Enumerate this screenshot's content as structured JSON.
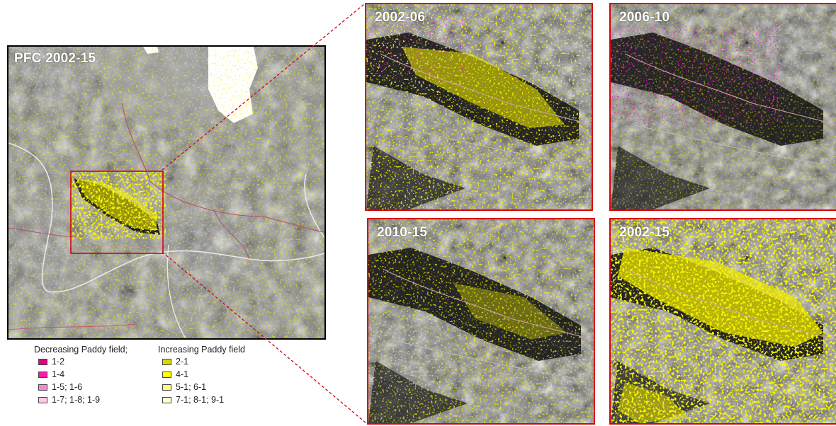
{
  "main_map": {
    "label": "PFC 2002-15"
  },
  "insets": [
    {
      "label": "2002-06"
    },
    {
      "label": "2006-10"
    },
    {
      "label": "2010-15"
    },
    {
      "label": "2002-15"
    }
  ],
  "legend": {
    "decreasing_title": "Decreasing Paddy field;",
    "increasing_title": "Increasing Paddy field",
    "decreasing": [
      {
        "label": "1-2",
        "color": "#e6007e"
      },
      {
        "label": "1-4",
        "color": "#ff1aa8"
      },
      {
        "label": "1-5; 1-6",
        "color": "#f08ad0"
      },
      {
        "label": "1-7; 1-8; 1-9",
        "color": "#ffc8e6"
      }
    ],
    "increasing": [
      {
        "label": "2-1",
        "color": "#d8d800"
      },
      {
        "label": "4-1",
        "color": "#ffff00"
      },
      {
        "label": "5-1; 6-1",
        "color": "#ffff80"
      },
      {
        "label": "7-1; 8-1; 9-1",
        "color": "#ffffd0"
      }
    ]
  },
  "colors": {
    "frame_red": "#d8000c",
    "paddy_yellow": "#f2ee00",
    "paddy_magenta": "#e0009a"
  }
}
